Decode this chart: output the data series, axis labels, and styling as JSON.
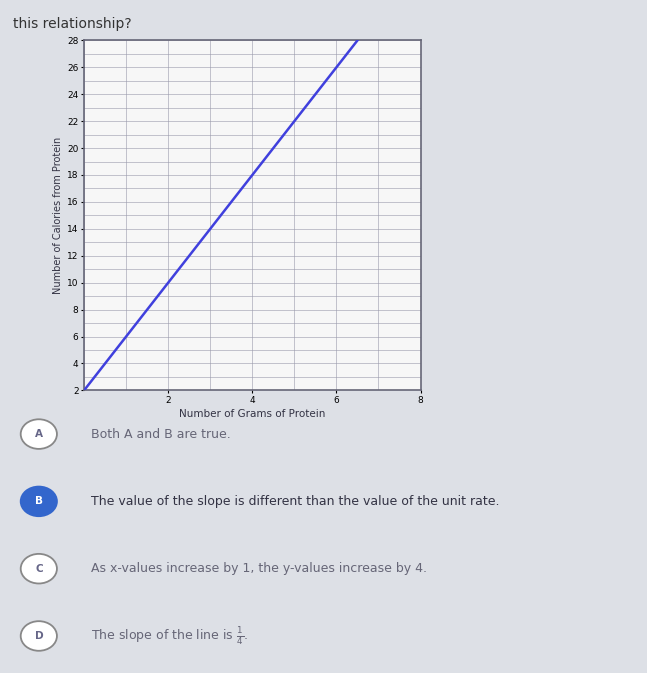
{
  "title_text": "this relationship?",
  "graph": {
    "xlabel": "Number of Grams of Protein",
    "ylabel": "Number of Calories from Protein",
    "xlim": [
      0,
      8
    ],
    "ylim": [
      2,
      28
    ],
    "ytick_start": 2,
    "ytick_end": 28,
    "ytick_step": 2,
    "xtick_labels": [
      "2",
      "4",
      "6",
      "8"
    ],
    "xtick_positions": [
      2,
      4,
      6,
      8
    ],
    "line_x": [
      0,
      6.5
    ],
    "line_y": [
      2,
      28
    ],
    "line_color": "#4040dd",
    "grid_color": "#9999aa",
    "grid_border_color": "#666677",
    "bg_color": "#f7f7f7"
  },
  "options": [
    {
      "label": "A",
      "text": "Both A and B are true.",
      "selected": false,
      "circle_fill": "#ffffff",
      "circle_border": "#888888",
      "text_color": "#666677"
    },
    {
      "label": "B",
      "text": "The value of the slope is different than the value of the unit rate.",
      "selected": true,
      "circle_fill": "#3366cc",
      "circle_border": "#3366cc",
      "text_color": "#333344"
    },
    {
      "label": "C",
      "text": "As x-values increase by 1, the y-values increase by 4.",
      "selected": false,
      "circle_fill": "#ffffff",
      "circle_border": "#888888",
      "text_color": "#666677"
    },
    {
      "label": "D",
      "text": "The slope of the line is",
      "selected": false,
      "circle_fill": "#ffffff",
      "circle_border": "#888888",
      "text_color": "#666677"
    }
  ],
  "bg_page_color": "#dde0e6",
  "title_color": "#333333",
  "title_fontsize": 10
}
